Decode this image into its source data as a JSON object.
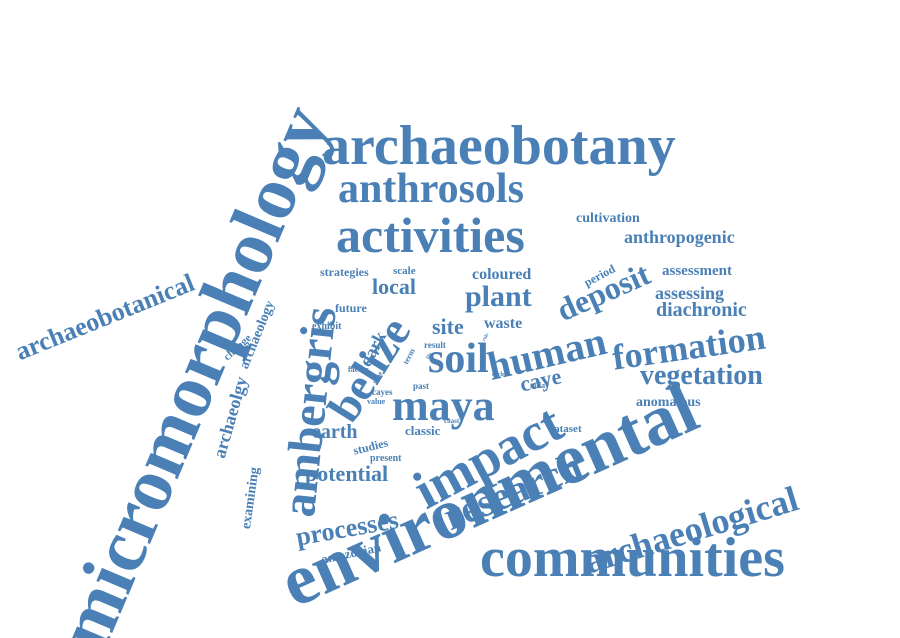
{
  "colors": {
    "word": "#4a80b5",
    "background": "#ffffff"
  },
  "words": [
    "micromorphology",
    "environmental",
    "archaeobotany",
    "communities",
    "activities",
    "anthrosols",
    "ambergris",
    "impact",
    "research",
    "archaeological",
    "belize",
    "human",
    "soil",
    "maya",
    "formation",
    "vegetation",
    "deposit",
    "plant",
    "archaeobotanical",
    "processes",
    "potential",
    "diachronic",
    "caye",
    "local",
    "earth",
    "site",
    "waste",
    "coloured",
    "anthropogenic",
    "assessing",
    "assessment",
    "cultivation",
    "strategies",
    "scale",
    "period",
    "future",
    "exhibit",
    "dark",
    "anomalous",
    "archaeology",
    "archaeolgy",
    "change",
    "examining",
    "amazonian",
    "studies",
    "classic",
    "dataset",
    "present",
    "value",
    "cayes",
    "factor",
    "time",
    "past",
    "today",
    "result",
    "term",
    "coast",
    "cycle",
    "role",
    "life"
  ]
}
